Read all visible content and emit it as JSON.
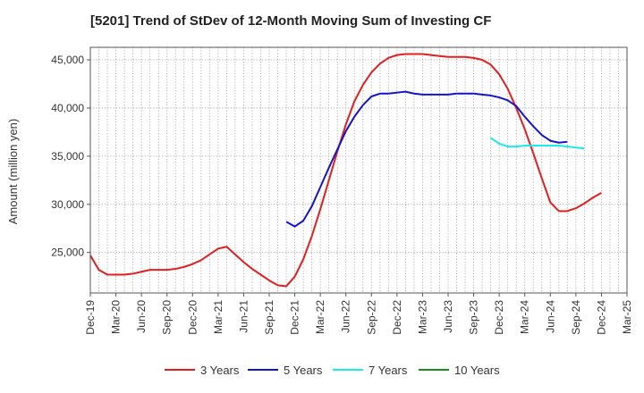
{
  "chart_data": {
    "type": "line",
    "title": "[5201]  Trend of StDev of 12-Month Moving Sum of Investing CF",
    "ylabel": "Amount (million yen)",
    "xlabel": "",
    "x_start": "Dec-19",
    "x_ticks": [
      "Dec-19",
      "Mar-20",
      "Jun-20",
      "Sep-20",
      "Dec-20",
      "Mar-21",
      "Jun-21",
      "Sep-21",
      "Dec-21",
      "Mar-22",
      "Jun-22",
      "Sep-22",
      "Dec-22",
      "Mar-23",
      "Jun-23",
      "Sep-23",
      "Dec-23",
      "Mar-24",
      "Jun-24",
      "Sep-24",
      "Dec-24",
      "Mar-25"
    ],
    "y_ticks": [
      "25,000",
      "30,000",
      "35,000",
      "40,000",
      "45,000"
    ],
    "y_tick_values": [
      25000,
      30000,
      35000,
      40000,
      45000
    ],
    "ylim": [
      20800,
      46300
    ],
    "grid": true,
    "legend_position": "bottom",
    "series": [
      {
        "name": "3 Years",
        "color": "#e02020",
        "start": "Dec-19",
        "values": [
          24700,
          23200,
          22700,
          22700,
          22700,
          22800,
          23000,
          23200,
          23200,
          23200,
          23300,
          23500,
          23800,
          24200,
          24800,
          25400,
          25600,
          24800,
          24000,
          23300,
          22700,
          22100,
          21600,
          21500,
          22500,
          24300,
          26700,
          29500,
          32500,
          35500,
          38300,
          40700,
          42400,
          43700,
          44600,
          45200,
          45500,
          45600,
          45600,
          45600,
          45500,
          45400,
          45300,
          45300,
          45300,
          45200,
          45000,
          44500,
          43500,
          42000,
          40000,
          37800,
          35300,
          32700,
          30200,
          29300,
          29300,
          29600,
          30100,
          30700,
          31200
        ]
      },
      {
        "name": "5 Years",
        "color": "#1515c8",
        "start": "Nov-21",
        "values": [
          28200,
          27700,
          28300,
          29800,
          31800,
          33800,
          35700,
          37600,
          39100,
          40300,
          41200,
          41500,
          41500,
          41600,
          41700,
          41500,
          41400,
          41400,
          41400,
          41400,
          41500,
          41500,
          41500,
          41400,
          41300,
          41100,
          40800,
          40200,
          39100,
          38100,
          37200,
          36600,
          36400,
          36500
        ]
      },
      {
        "name": "7 Years",
        "color": "#20e8e8",
        "start": "Nov-23",
        "values": [
          36900,
          36300,
          36000,
          36000,
          36100,
          36100,
          36100,
          36100,
          36100,
          36000,
          35900,
          35800
        ]
      },
      {
        "name": "10 Years",
        "color": "#1e8a1e",
        "start": "",
        "values": []
      }
    ]
  }
}
